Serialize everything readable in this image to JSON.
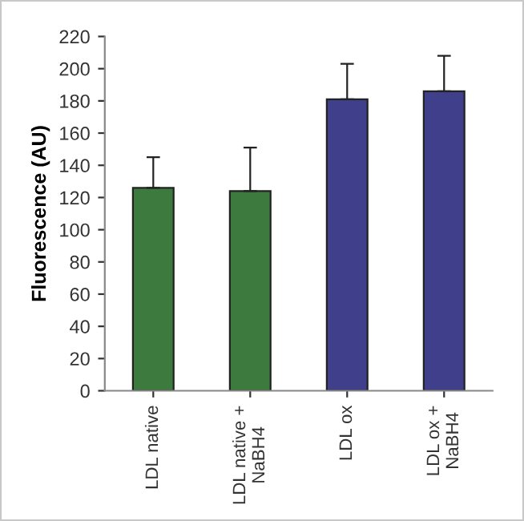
{
  "chart_data": {
    "type": "bar",
    "ylabel": "Fluorescence (AU)",
    "categories": [
      "LDL native",
      "LDL native +\nNaBH4",
      "LDL ox",
      "LDL ox +\nNaBH4"
    ],
    "values": [
      126,
      124,
      181,
      186
    ],
    "colors": [
      "#3d7a3d",
      "#3d7a3d",
      "#3f3f8c",
      "#3f3f8c"
    ],
    "errors": [
      [
        126,
        145
      ],
      [
        124,
        151
      ],
      [
        181,
        203
      ],
      [
        186,
        208
      ]
    ],
    "ylim": [
      0,
      220
    ],
    "yticks": [
      0,
      20,
      40,
      60,
      80,
      100,
      120,
      140,
      160,
      180,
      200,
      220
    ],
    "grid": false
  }
}
